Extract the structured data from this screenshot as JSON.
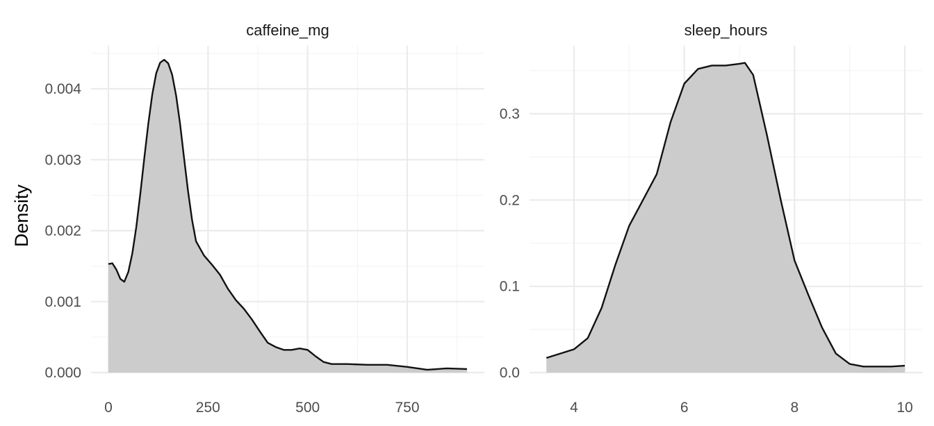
{
  "chart_data": {
    "type": "area",
    "ylabel": "Density",
    "xlabel": "",
    "grid": true,
    "legend": "none",
    "fill_color": "#cccccc",
    "line_color": "#111111",
    "facets": [
      {
        "title": "caffeine_mg",
        "xlim": [
          0,
          900
        ],
        "ylim": [
          0,
          0.0044
        ],
        "x_ticks": [
          0,
          250,
          500,
          750
        ],
        "x_tick_labels": [
          "0",
          "250",
          "500",
          "750"
        ],
        "y_ticks": [
          0,
          0.001,
          0.002,
          0.003,
          0.004
        ],
        "y_tick_labels": [
          "0.000",
          "0.001",
          "0.002",
          "0.003",
          "0.004"
        ],
        "x": [
          0,
          10,
          20,
          30,
          40,
          50,
          60,
          70,
          80,
          90,
          100,
          110,
          120,
          130,
          140,
          150,
          160,
          170,
          180,
          190,
          200,
          210,
          220,
          240,
          260,
          280,
          300,
          320,
          340,
          360,
          380,
          400,
          420,
          440,
          460,
          480,
          500,
          520,
          540,
          560,
          600,
          650,
          700,
          750,
          800,
          850,
          900
        ],
        "y": [
          0.00153,
          0.00154,
          0.00145,
          0.00132,
          0.00128,
          0.00142,
          0.00168,
          0.00205,
          0.00252,
          0.00302,
          0.0035,
          0.00392,
          0.00422,
          0.00437,
          0.00441,
          0.00436,
          0.0042,
          0.0039,
          0.0035,
          0.00302,
          0.00255,
          0.00215,
          0.00185,
          0.00165,
          0.00152,
          0.00138,
          0.00118,
          0.00102,
          0.0009,
          0.00075,
          0.00058,
          0.00042,
          0.00036,
          0.00032,
          0.00032,
          0.00034,
          0.00032,
          0.00023,
          0.00015,
          0.00012,
          0.00012,
          0.00011,
          0.00011,
          8e-05,
          4e-05,
          6e-05,
          5e-05
        ]
      },
      {
        "title": "sleep_hours",
        "xlim": [
          3.5,
          10
        ],
        "ylim": [
          0,
          0.36
        ],
        "x_ticks": [
          4,
          6,
          8,
          10
        ],
        "x_tick_labels": [
          "4",
          "6",
          "8",
          "10"
        ],
        "y_ticks": [
          0,
          0.1,
          0.2,
          0.3
        ],
        "y_tick_labels": [
          "0.0",
          "0.1",
          "0.2",
          "0.3"
        ],
        "x": [
          3.5,
          3.75,
          4.0,
          4.25,
          4.5,
          4.75,
          5.0,
          5.25,
          5.5,
          5.75,
          6.0,
          6.25,
          6.5,
          6.75,
          7.0,
          7.1,
          7.25,
          7.5,
          7.75,
          8.0,
          8.25,
          8.5,
          8.75,
          9.0,
          9.25,
          9.5,
          9.75,
          10.0
        ],
        "y": [
          0.017,
          0.022,
          0.027,
          0.04,
          0.075,
          0.125,
          0.17,
          0.2,
          0.23,
          0.29,
          0.335,
          0.352,
          0.356,
          0.356,
          0.358,
          0.359,
          0.345,
          0.275,
          0.2,
          0.13,
          0.09,
          0.052,
          0.022,
          0.01,
          0.007,
          0.007,
          0.007,
          0.008
        ]
      }
    ]
  }
}
